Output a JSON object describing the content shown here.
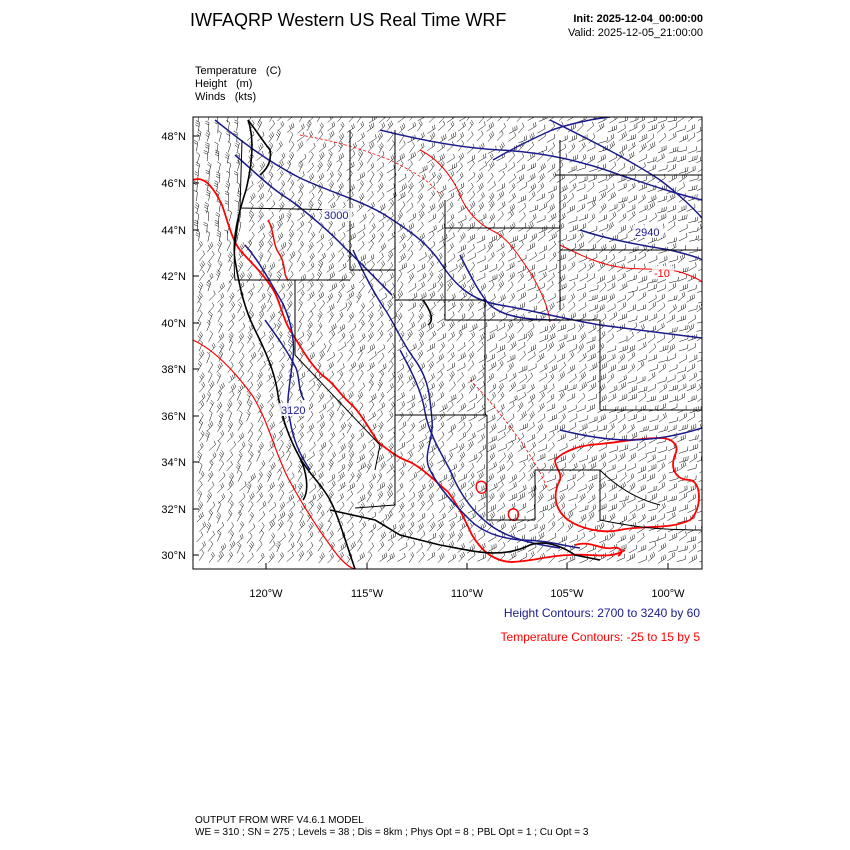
{
  "header": {
    "title": "IWFAQRP Western US Real Time WRF",
    "init": "Init: 2025-12-04_00:00:00",
    "valid": "Valid: 2025-12-05_21:00:00"
  },
  "fields": [
    "Temperature   (C)",
    "Height   (m)",
    "Winds   (kts)"
  ],
  "map": {
    "lat_labels": [
      "48°N",
      "46°N",
      "44°N",
      "42°N",
      "40°N",
      "38°N",
      "36°N",
      "34°N",
      "32°N",
      "30°N"
    ],
    "lon_labels": [
      "120°W",
      "115°W",
      "110°W",
      "105°W",
      "100°W"
    ],
    "contour_labels": [
      "3000",
      "3120",
      "2940",
      "-10"
    ],
    "colors": {
      "height": "#1a1a8c",
      "temperature": "#ff0000",
      "border": "#000000"
    }
  },
  "legend": {
    "height": "Height Contours: 2700 to 3240 by 60",
    "temperature": "Temperature Contours: -25 to 15 by 5"
  },
  "footer": {
    "line1": "OUTPUT FROM WRF V4.6.1 MODEL",
    "line2": "WE = 310 ; SN = 275 ; Levels = 38 ; Dis = 8km ; Phys Opt = 8 ; PBL Opt = 1 ; Cu Opt = 3"
  }
}
